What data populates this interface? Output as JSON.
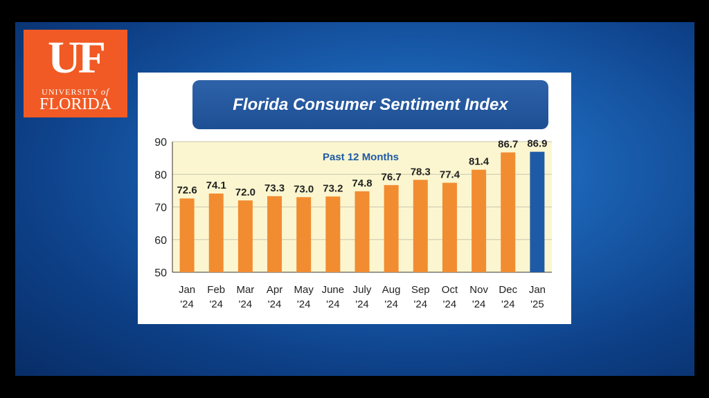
{
  "logo": {
    "mark": "UF",
    "line1_a": "UNIVERSITY",
    "line1_b": "of",
    "line2": "FLORIDA"
  },
  "colors": {
    "bar": "#f28c31",
    "highlight_bar": "#1f5aa6",
    "plot_bg": "#fbf6cf",
    "title_bar": "#2a5ea6",
    "logo": "#f15a24"
  },
  "chart_data": {
    "type": "bar",
    "title": "Florida Consumer Sentiment Index",
    "subtitle": "Past 12 Months",
    "categories": [
      [
        "Jan",
        "'24"
      ],
      [
        "Feb",
        "'24"
      ],
      [
        "Mar",
        "'24"
      ],
      [
        "Apr",
        "'24"
      ],
      [
        "May",
        "'24"
      ],
      [
        "June",
        "'24"
      ],
      [
        "July",
        "'24"
      ],
      [
        "Aug",
        "'24"
      ],
      [
        "Sep",
        "'24"
      ],
      [
        "Oct",
        "'24"
      ],
      [
        "Nov",
        "'24"
      ],
      [
        "Dec",
        "'24"
      ],
      [
        "Jan",
        "'25"
      ]
    ],
    "values": [
      72.6,
      74.1,
      72.0,
      73.3,
      73.0,
      73.2,
      74.8,
      76.7,
      78.3,
      77.4,
      81.4,
      86.7,
      86.9
    ],
    "value_labels": [
      "72.6",
      "74.1",
      "72.0",
      "73.3",
      "73.0",
      "73.2",
      "74.8",
      "76.7",
      "78.3",
      "77.4",
      "81.4",
      "86.7",
      "86.9"
    ],
    "highlight_index": 12,
    "ylim": [
      50,
      90
    ],
    "yticks": [
      "90",
      "80",
      "70",
      "60",
      "50"
    ],
    "ytick_values": [
      90,
      80,
      70,
      60,
      50
    ],
    "grid": true
  }
}
